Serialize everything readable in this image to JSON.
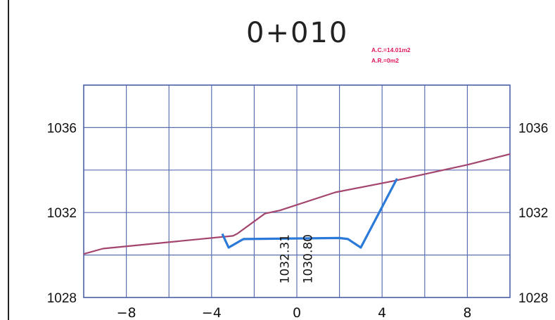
{
  "section": {
    "station": "0+010",
    "cut_area": "A.C.=14.01m2",
    "fill_area": "A.R.=0m2"
  },
  "chart_data": {
    "type": "line",
    "title": "0+010",
    "xlabel": "",
    "ylabel": "",
    "xlim": [
      -10,
      10
    ],
    "ylim": [
      1028,
      1038
    ],
    "grid": true,
    "x_ticks": [
      -8,
      -4,
      0,
      4,
      8
    ],
    "x_tick_labels": [
      "−8",
      "−4",
      "0",
      "4",
      "8"
    ],
    "y_ticks": [
      1028,
      1032,
      1036
    ],
    "y_tick_labels": [
      "1028",
      "1032",
      "1036"
    ],
    "annotations": [
      "A.C.=14.01m2",
      "A.R.=0m2"
    ],
    "elevation_labels": [
      "1032.31",
      "1030.80"
    ],
    "series": [
      {
        "color": "#a3456f",
        "x": [
          -10.0,
          -9.1,
          -3.0,
          -2.8,
          -1.5,
          -0.8,
          1.8,
          4.6,
          8.0,
          10.0
        ],
        "y": [
          1030.05,
          1030.3,
          1030.9,
          1031.0,
          1031.95,
          1032.1,
          1032.95,
          1033.5,
          1034.25,
          1034.75
        ]
      },
      {
        "color": "#2b7ad9",
        "x": [
          -3.5,
          -3.2,
          -2.6,
          -2.5,
          2.0,
          2.4,
          3.0,
          4.7
        ],
        "y": [
          1031.0,
          1030.35,
          1030.7,
          1030.75,
          1030.8,
          1030.75,
          1030.35,
          1033.6
        ]
      }
    ]
  }
}
